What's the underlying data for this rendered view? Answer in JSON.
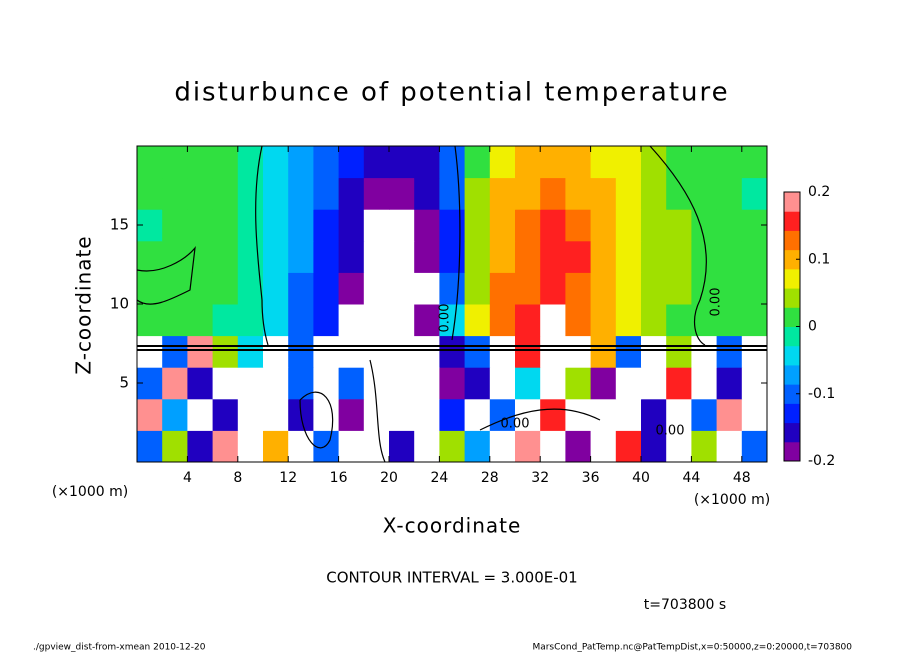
{
  "chart_data": {
    "type": "contour",
    "title": "disturbunce of potential temperature",
    "xlabel": "X-coordinate",
    "ylabel": "Z-coordinate",
    "xunit": "(×1000 m)",
    "yunit": "(×1000 m)",
    "xlim": [
      0,
      50
    ],
    "ylim": [
      0,
      20
    ],
    "xticks": [
      4,
      8,
      12,
      16,
      20,
      24,
      28,
      32,
      36,
      40,
      44,
      48
    ],
    "yticks": [
      5,
      10,
      15
    ],
    "clim": [
      -0.2,
      0.2
    ],
    "cticks": [
      -0.2,
      -0.1,
      0,
      0.1,
      0.2
    ],
    "colors": [
      "#8000a0",
      "#2000c0",
      "#0020ff",
      "#0060ff",
      "#00a0ff",
      "#00d8f0",
      "#00e8a0",
      "#30e040",
      "#a0e000",
      "#f0f000",
      "#ffb000",
      "#ff7000",
      "#ff2020",
      "#ff9090"
    ],
    "out_of_range_color": "#ffffff",
    "x": [
      1,
      3,
      5,
      7,
      9,
      11,
      13,
      15,
      17,
      19,
      21,
      23,
      25,
      27,
      29,
      31,
      33,
      35,
      37,
      39,
      41,
      43,
      45,
      47,
      49
    ],
    "y": [
      1,
      3,
      5,
      7,
      9,
      11,
      13,
      15,
      17,
      19
    ],
    "z": [
      [
        -0.1,
        0.05,
        -0.15,
        0.2,
        -0.25,
        0.1,
        0.25,
        -0.1,
        0.25,
        0.25,
        -0.15,
        0.25,
        0.05,
        -0.08,
        0.25,
        0.2,
        0.25,
        -0.2,
        0.25,
        0.15,
        -0.15,
        0.25,
        0.05,
        0.25,
        -0.1
      ],
      [
        0.18,
        -0.08,
        0.25,
        -0.15,
        0.25,
        0.25,
        -0.15,
        0.25,
        -0.2,
        0.25,
        0.25,
        0.25,
        -0.12,
        0.25,
        -0.1,
        0.25,
        0.15,
        0.25,
        -0.25,
        0.25,
        -0.15,
        0.25,
        -0.1,
        0.2,
        0.25
      ],
      [
        -0.1,
        0.2,
        -0.15,
        0.25,
        -0.25,
        0.25,
        -0.1,
        0.25,
        -0.1,
        0.25,
        0.25,
        -0.25,
        -0.18,
        -0.15,
        0.25,
        -0.05,
        0.25,
        0.05,
        -0.2,
        0.25,
        0.25,
        0.15,
        0.25,
        -0.15,
        0.25
      ],
      [
        0.25,
        -0.1,
        0.2,
        0.05,
        -0.05,
        0.25,
        -0.1,
        0.25,
        0.25,
        -0.25,
        0.25,
        0.25,
        -0.15,
        -0.1,
        0.25,
        0.15,
        0.25,
        0.25,
        0.1,
        -0.1,
        0.25,
        0.05,
        0.25,
        -0.1,
        0.25
      ],
      [
        0,
        0,
        0,
        -0.01,
        -0.02,
        -0.05,
        -0.09,
        -0.13,
        -0.21,
        -0.25,
        -0.25,
        -0.2,
        -0.05,
        0.06,
        0.14,
        0.17,
        0.22,
        0.14,
        0.09,
        0.06,
        0.04,
        0.02,
        0,
        0,
        0
      ],
      [
        0,
        0,
        0,
        0,
        -0.02,
        -0.05,
        -0.09,
        -0.13,
        -0.18,
        -0.25,
        -0.25,
        -0.21,
        -0.1,
        0.05,
        0.12,
        0.14,
        0.15,
        0.13,
        0.1,
        0.07,
        0.05,
        0.03,
        0.01,
        0,
        0
      ],
      [
        0,
        0,
        0,
        0,
        -0.02,
        -0.05,
        -0.08,
        -0.12,
        -0.17,
        -0.25,
        -0.25,
        -0.2,
        -0.12,
        0.04,
        0.11,
        0.14,
        0.17,
        0.15,
        0.11,
        0.08,
        0.05,
        0.03,
        0.01,
        0,
        0
      ],
      [
        -0.01,
        0,
        0,
        0,
        -0.02,
        -0.05,
        -0.08,
        -0.12,
        -0.16,
        -0.21,
        -0.22,
        -0.19,
        -0.12,
        0.04,
        0.1,
        0.13,
        0.15,
        0.14,
        0.1,
        0.07,
        0.05,
        0.03,
        0.01,
        0,
        0
      ],
      [
        0,
        0,
        0,
        0,
        -0.02,
        -0.04,
        -0.08,
        -0.11,
        -0.15,
        -0.19,
        -0.2,
        -0.17,
        -0.11,
        0.03,
        0.09,
        0.11,
        0.12,
        0.11,
        0.09,
        0.06,
        0.04,
        0.02,
        0.01,
        0,
        -0.01
      ],
      [
        0,
        0,
        0,
        0,
        -0.02,
        -0.04,
        -0.07,
        -0.1,
        -0.13,
        -0.16,
        -0.17,
        -0.15,
        -0.1,
        0.02,
        0.07,
        0.09,
        0.1,
        0.1,
        0.08,
        0.06,
        0.04,
        0.02,
        0.01,
        0,
        0
      ]
    ],
    "contour_labels": [
      "0.00",
      "0.00",
      "0.00",
      "0.00"
    ],
    "contour_interval": "CONTOUR INTERVAL = 3.000E-01",
    "time_label": "t=703800 s",
    "footer_left": "./gpview_dist-from-xmean  2010-12-20",
    "footer_right": "MarsCond_PatTemp.nc@PatTempDist,x=0:50000,z=0:20000,t=703800"
  }
}
